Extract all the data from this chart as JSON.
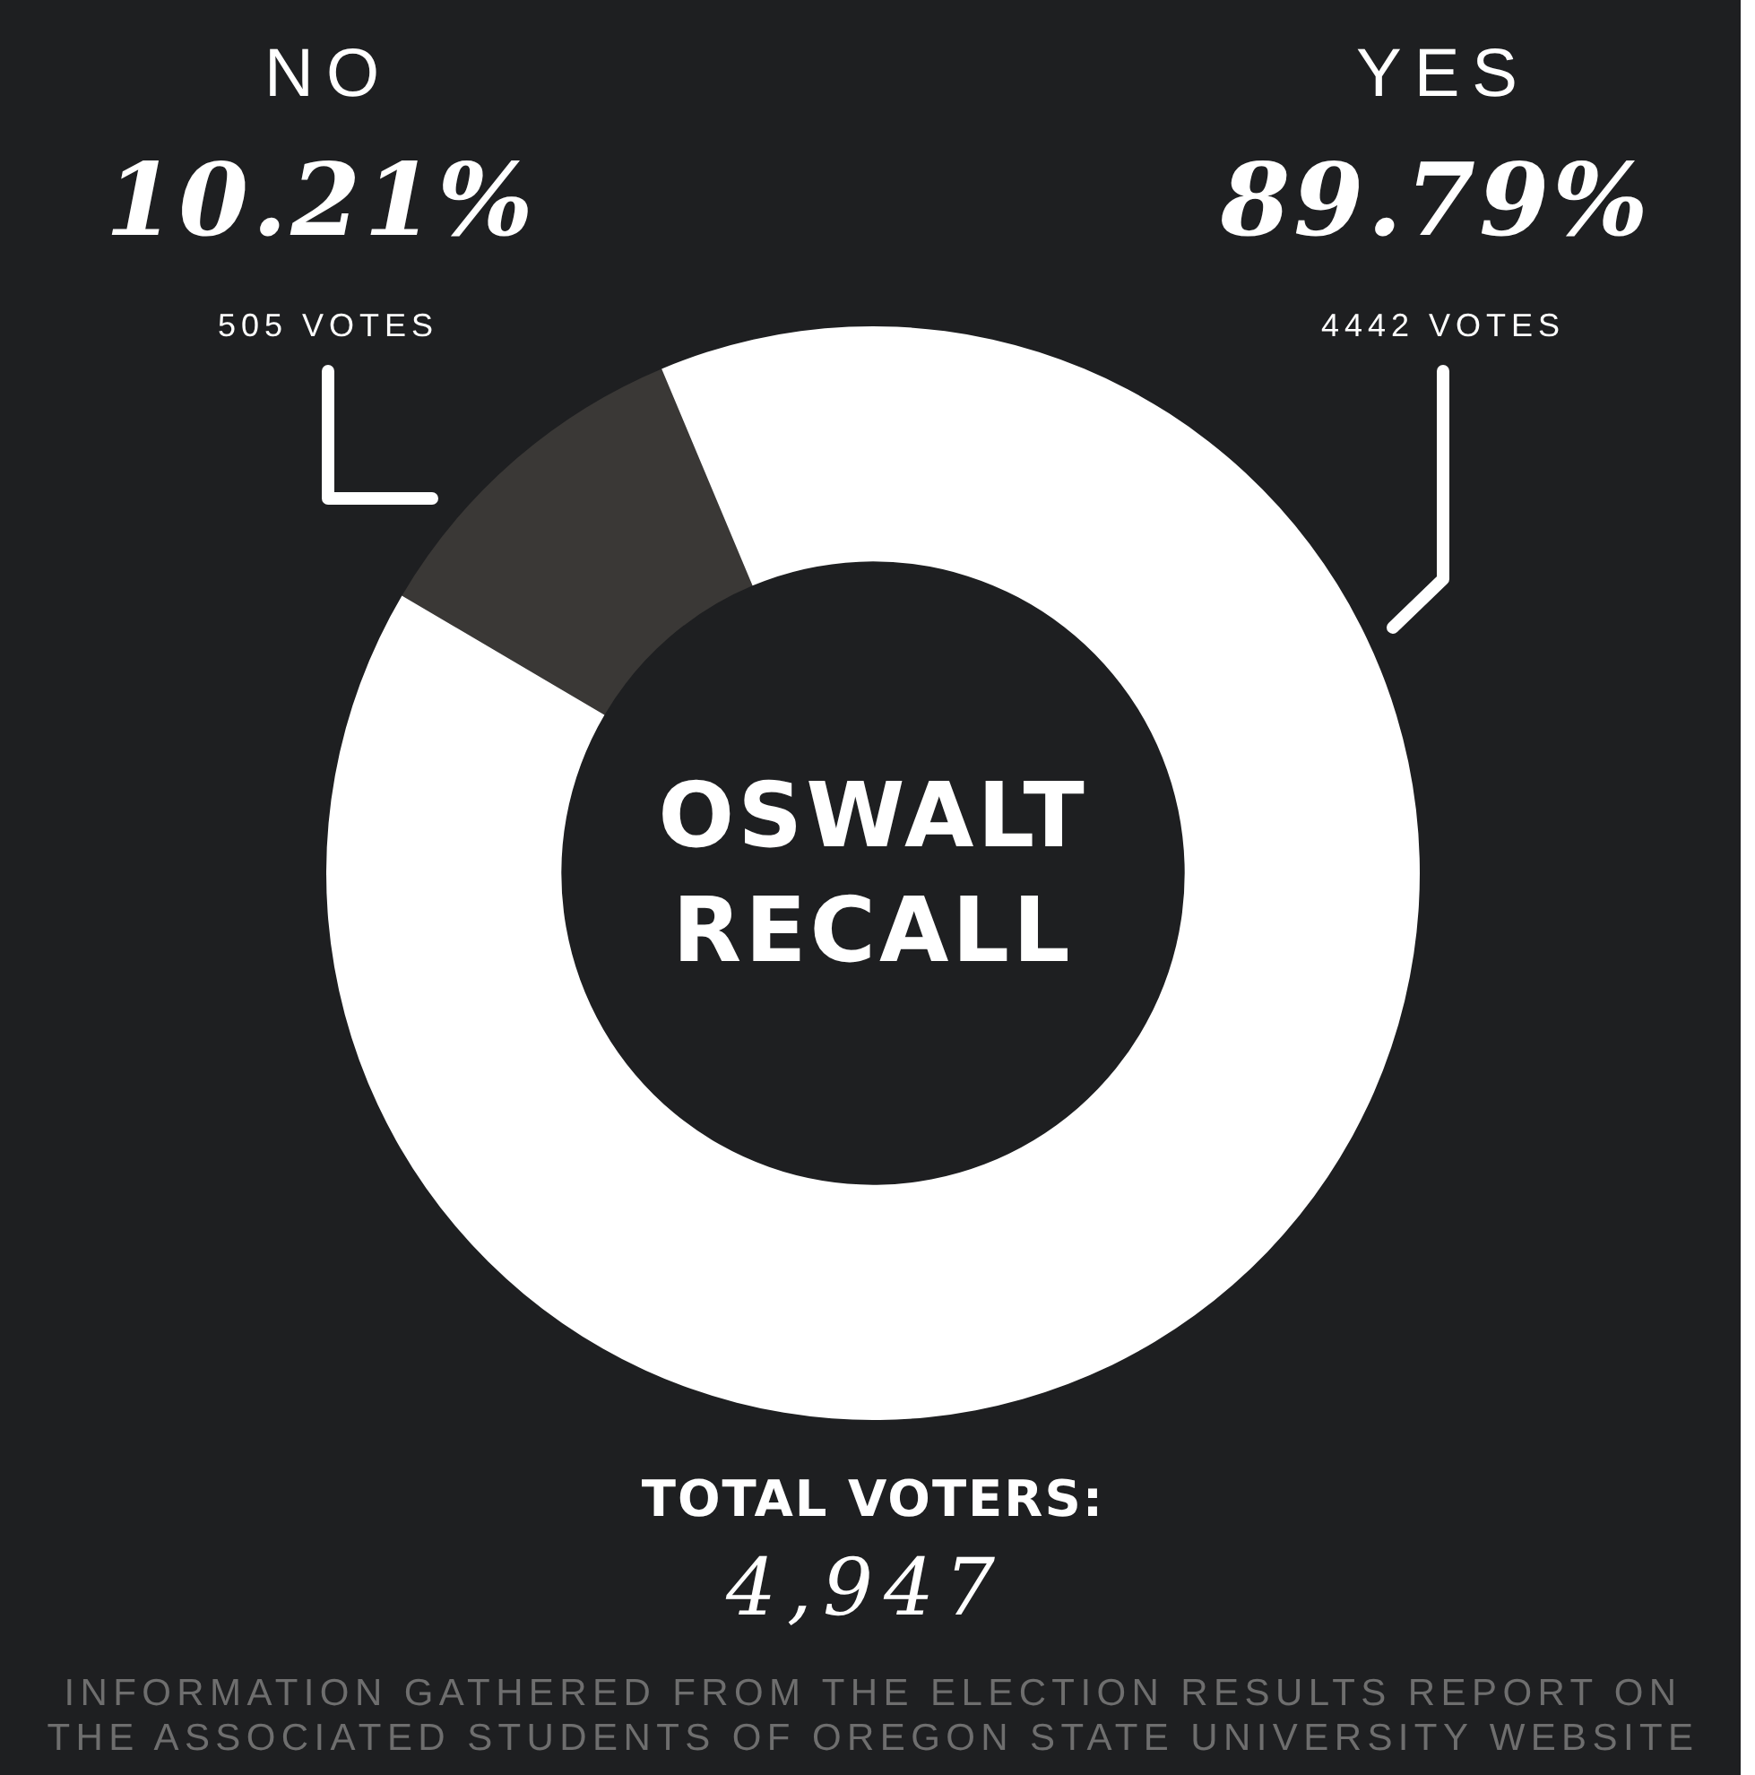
{
  "chart_data": {
    "type": "donut",
    "title": "OSWALT RECALL",
    "categories": [
      "NO",
      "YES"
    ],
    "values": [
      10.21,
      89.79
    ],
    "colors": [
      "#3a3836",
      "#ffffff"
    ],
    "value_labels": [
      "10.21%",
      "89.79%"
    ],
    "annotations": [
      "505 VOTES",
      "4442 VOTES",
      "TOTAL VOTERS:",
      "4,947",
      "INFORMATION GATHERED FROM THE ELECTION RESULTS REPORT ON",
      "THE ASSOCIATED STUDENTS OF OREGON STATE UNIVERSITY WEBSITE"
    ]
  }
}
